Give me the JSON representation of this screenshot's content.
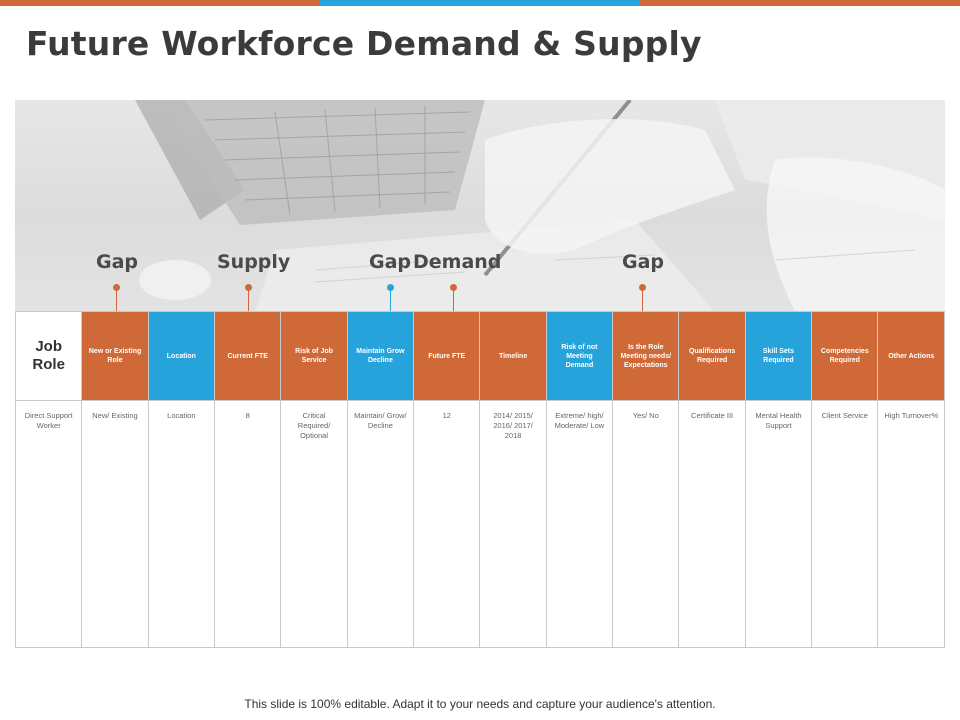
{
  "colors": {
    "orange": "#cf6a38",
    "blue": "#27a3dc",
    "title": "#3b3b3b"
  },
  "title": "Future Workforce Demand & Supply",
  "markers": [
    {
      "label": "Gap",
      "color": "orange"
    },
    {
      "label": "Supply",
      "color": "orange"
    },
    {
      "label": "Gap",
      "color": "blue"
    },
    {
      "label": "Demand",
      "color": "orange"
    },
    {
      "label": "Gap",
      "color": "orange"
    }
  ],
  "table": {
    "headers": [
      "Job Role",
      "New or Existing Role",
      "Location",
      "Current FTE",
      "Risk of Job Service",
      "Maintain Grow Decline",
      "Future FTE",
      "Timeline",
      "Risk of not Meeting Demand",
      "Is the Role Meeting needs/ Expectations",
      "Qualifications Required",
      "Skill Sets Required",
      "Competencies Required",
      "Other Actions"
    ],
    "header_colors": [
      "white",
      "orange",
      "blue",
      "orange",
      "orange",
      "blue",
      "orange",
      "orange",
      "blue",
      "orange",
      "orange",
      "blue",
      "orange",
      "orange"
    ],
    "row": [
      "Direct Support Worker",
      "New/ Existing",
      "Location",
      "8",
      "Critical Required/ Optional",
      "Maintain/ Grow/ Decline",
      "12",
      "2014/ 2015/ 2016/ 2017/ 2018",
      "Extreme/ high/ Moderate/ Low",
      "Yes/ No",
      "Certificate III",
      "Mental Health Support",
      "Client Service",
      "High Turnover%"
    ]
  },
  "footer": "This slide is 100% editable. Adapt it to your needs and capture your audience's attention."
}
